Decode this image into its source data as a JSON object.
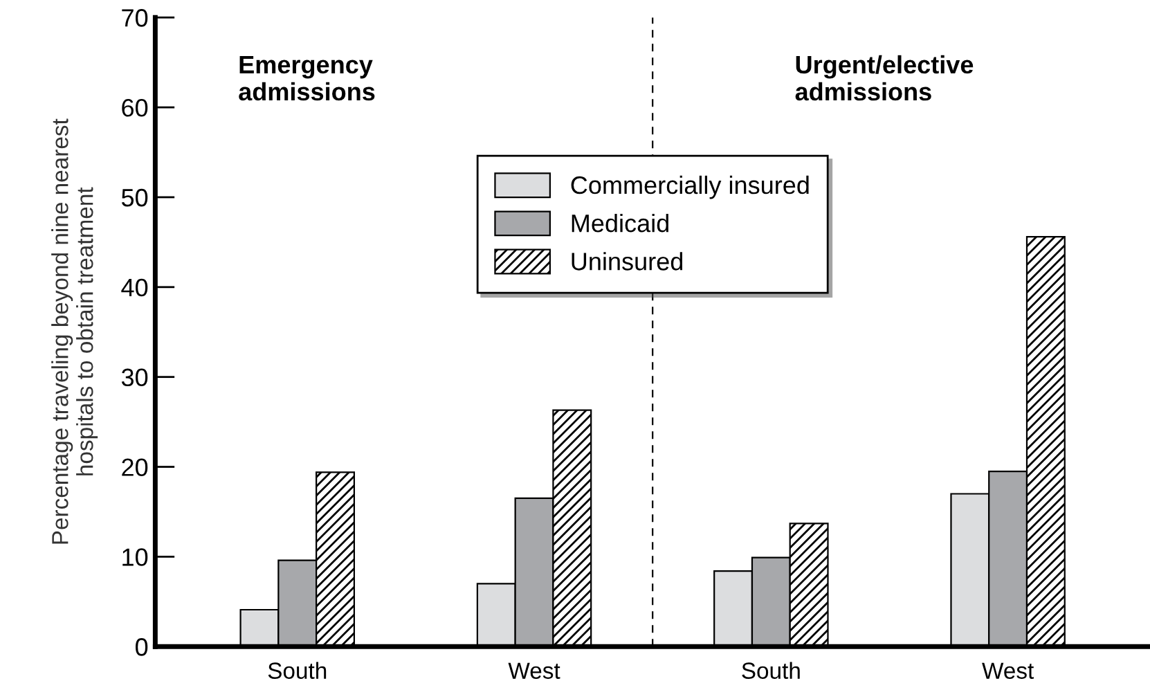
{
  "chart_data": {
    "type": "bar",
    "ylabel": "Percentage traveling beyond nine nearest\nhospitals to obtain treatment",
    "categories": [
      "South",
      "West",
      "South",
      "West"
    ],
    "series": [
      {
        "name": "Commercially insured",
        "color": "#dcdddf",
        "values": [
          4.1,
          7.0,
          8.4,
          17.0
        ]
      },
      {
        "name": "Medicaid",
        "color": "#a7a8ab",
        "values": [
          9.6,
          16.5,
          9.9,
          19.5
        ]
      },
      {
        "name": "Uninsured",
        "color": "#000000",
        "values": [
          19.4,
          26.3,
          13.7,
          45.6
        ]
      }
    ],
    "ylim": [
      0,
      70
    ],
    "yticks": [
      0,
      10,
      20,
      30,
      40,
      50,
      60,
      70
    ],
    "annotations": [
      "Emergency\nadmissions",
      "Urgent/elective\nadmissions"
    ],
    "legend": "top",
    "grid": false
  }
}
